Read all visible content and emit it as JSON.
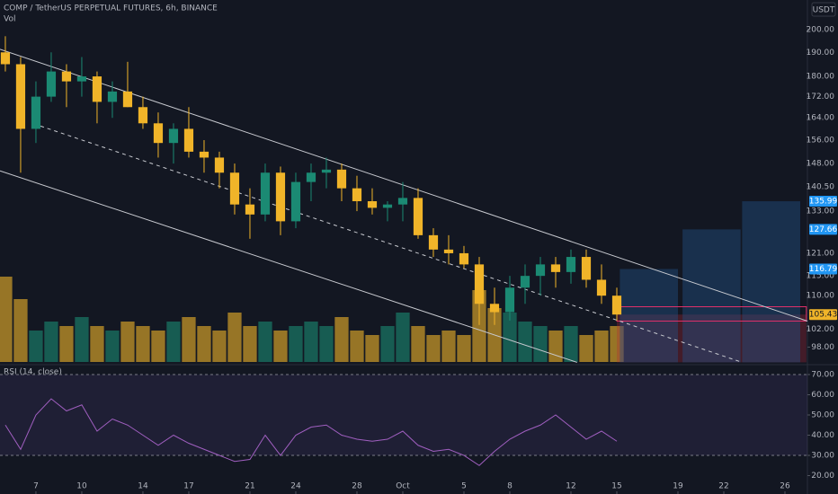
{
  "chart_data": {
    "type": "candlestick",
    "title": "COMP / TetherUS PERPETUAL FUTURES, 6h, BINANCE",
    "volume_label": "Vol",
    "currency": "USDT",
    "log_scale": true,
    "up_color": "#1b8a73",
    "down_color": "#f0b429",
    "x": [
      5,
      6,
      7,
      8,
      9,
      10,
      11,
      12,
      13,
      14,
      15,
      16,
      17,
      18,
      19,
      20,
      21,
      22,
      23,
      24,
      25,
      26,
      27,
      28,
      29,
      30,
      31,
      32,
      33,
      34,
      35,
      36,
      37,
      38,
      39,
      40,
      41,
      42,
      43,
      44,
      45
    ],
    "open": [
      190,
      185,
      160,
      172,
      182,
      178,
      180,
      170,
      174,
      168,
      162,
      155,
      160,
      152,
      150,
      145,
      135,
      132,
      145,
      130,
      142,
      145,
      146,
      140,
      136,
      134,
      135,
      137,
      126,
      122,
      121,
      118,
      108,
      106,
      112,
      115,
      118,
      116,
      120,
      114,
      110
    ],
    "high": [
      197,
      188,
      178,
      190,
      185,
      188,
      182,
      178,
      186,
      172,
      166,
      162,
      168,
      156,
      152,
      148,
      140,
      148,
      147,
      145,
      148,
      150,
      148,
      144,
      140,
      136,
      142,
      140,
      128,
      126,
      123,
      120,
      112,
      115,
      118,
      120,
      120,
      122,
      122,
      118,
      112
    ],
    "low": [
      182,
      145,
      155,
      170,
      168,
      172,
      162,
      164,
      168,
      160,
      150,
      148,
      150,
      145,
      140,
      132,
      125,
      130,
      126,
      128,
      136,
      140,
      136,
      133,
      132,
      130,
      130,
      125,
      120,
      118,
      117,
      103,
      103,
      104,
      108,
      110,
      112,
      113,
      112,
      108,
      104
    ],
    "close": [
      185,
      160,
      172,
      182,
      178,
      180,
      170,
      174,
      168,
      162,
      155,
      160,
      152,
      150,
      145,
      135,
      132,
      145,
      130,
      142,
      145,
      146,
      140,
      136,
      134,
      135,
      137,
      126,
      122,
      121,
      118,
      108,
      106,
      112,
      115,
      118,
      116,
      120,
      114,
      110,
      105.43
    ],
    "volume": [
      95,
      70,
      35,
      45,
      40,
      50,
      40,
      35,
      45,
      40,
      35,
      45,
      50,
      40,
      35,
      55,
      40,
      45,
      35,
      40,
      45,
      40,
      50,
      35,
      30,
      40,
      55,
      40,
      30,
      35,
      30,
      80,
      60,
      55,
      45,
      40,
      35,
      40,
      30,
      35,
      40
    ],
    "vlim": [
      0,
      100
    ],
    "xlim": [
      4.65,
      57.47
    ],
    "xticks": [
      7,
      10,
      14,
      17,
      21,
      24,
      28,
      {
        "value": 31,
        "label": "Oct"
      },
      {
        "value": 35,
        "label": "5"
      },
      {
        "value": 38,
        "label": "8"
      },
      {
        "value": 42,
        "label": "12"
      },
      {
        "value": 45,
        "label": "15"
      },
      {
        "value": 49,
        "label": "19"
      },
      {
        "value": 52,
        "label": "22"
      },
      {
        "value": 56,
        "label": "26"
      }
    ],
    "ylim": [
      94.4,
      213.7
    ],
    "yticks": [
      {
        "value": 200,
        "label": "200.00"
      },
      {
        "value": 190,
        "label": "190.00"
      },
      {
        "value": 180,
        "label": "180.00"
      },
      {
        "value": 172,
        "label": "172.00"
      },
      {
        "value": 164,
        "label": "164.00"
      },
      {
        "value": 156,
        "label": "156.00"
      },
      {
        "value": 148,
        "label": "148.00"
      },
      {
        "value": 140.5,
        "label": "140.50"
      },
      {
        "value": 133,
        "label": "133.00"
      },
      {
        "value": 121,
        "label": "121.00"
      },
      {
        "value": 115,
        "label": "115.00"
      },
      {
        "value": 110,
        "label": "110.00"
      },
      {
        "value": 102,
        "label": "102.00"
      },
      {
        "value": 98,
        "label": "98.00"
      }
    ],
    "last_price": 105.43,
    "channel": [
      {
        "x": [
          4.65,
          57.47
        ],
        "y": [
          191.3,
          103.9
        ],
        "dashed": false
      },
      {
        "x": [
          7.3,
          53.2
        ],
        "y": [
          161,
          94.7
        ],
        "dashed": true
      },
      {
        "x": [
          4.65,
          42.4
        ],
        "y": [
          145.6,
          94.7
        ],
        "dashed": false
      }
    ],
    "targets": [
      {
        "x": [
          45.2,
          49
        ],
        "value": 116.79
      },
      {
        "x": [
          49.3,
          53.1
        ],
        "value": 127.66
      },
      {
        "x": [
          53.2,
          57
        ],
        "value": 135.99
      }
    ],
    "stop_zone": {
      "x": [
        45,
        57.4
      ],
      "y": [
        94.7,
        105.43
      ]
    },
    "entry_box": {
      "x": [
        45,
        57.4
      ],
      "y": [
        103.9,
        107.3
      ]
    },
    "rsi": {
      "title": "RSI (14, close)",
      "color": "#a05fc0",
      "values": [
        45,
        33,
        50,
        58,
        52,
        55,
        42,
        48,
        45,
        40,
        35,
        40,
        36,
        33,
        30,
        27,
        28,
        40,
        30,
        40,
        44,
        45,
        40,
        38,
        37,
        38,
        42,
        35,
        32,
        33,
        30,
        25,
        32,
        38,
        42,
        45,
        50,
        44,
        38,
        42,
        37
      ],
      "ylim": [
        10.9,
        74
      ],
      "yticks": [
        {
          "value": 70,
          "label": "70.00"
        },
        {
          "value": 60,
          "label": "60.00"
        },
        {
          "value": 50,
          "label": "50.00"
        },
        {
          "value": 40,
          "label": "40.00"
        },
        {
          "value": 30,
          "label": "30.00"
        },
        {
          "value": 20,
          "label": "20.00"
        }
      ],
      "band": [
        30,
        70
      ]
    }
  }
}
